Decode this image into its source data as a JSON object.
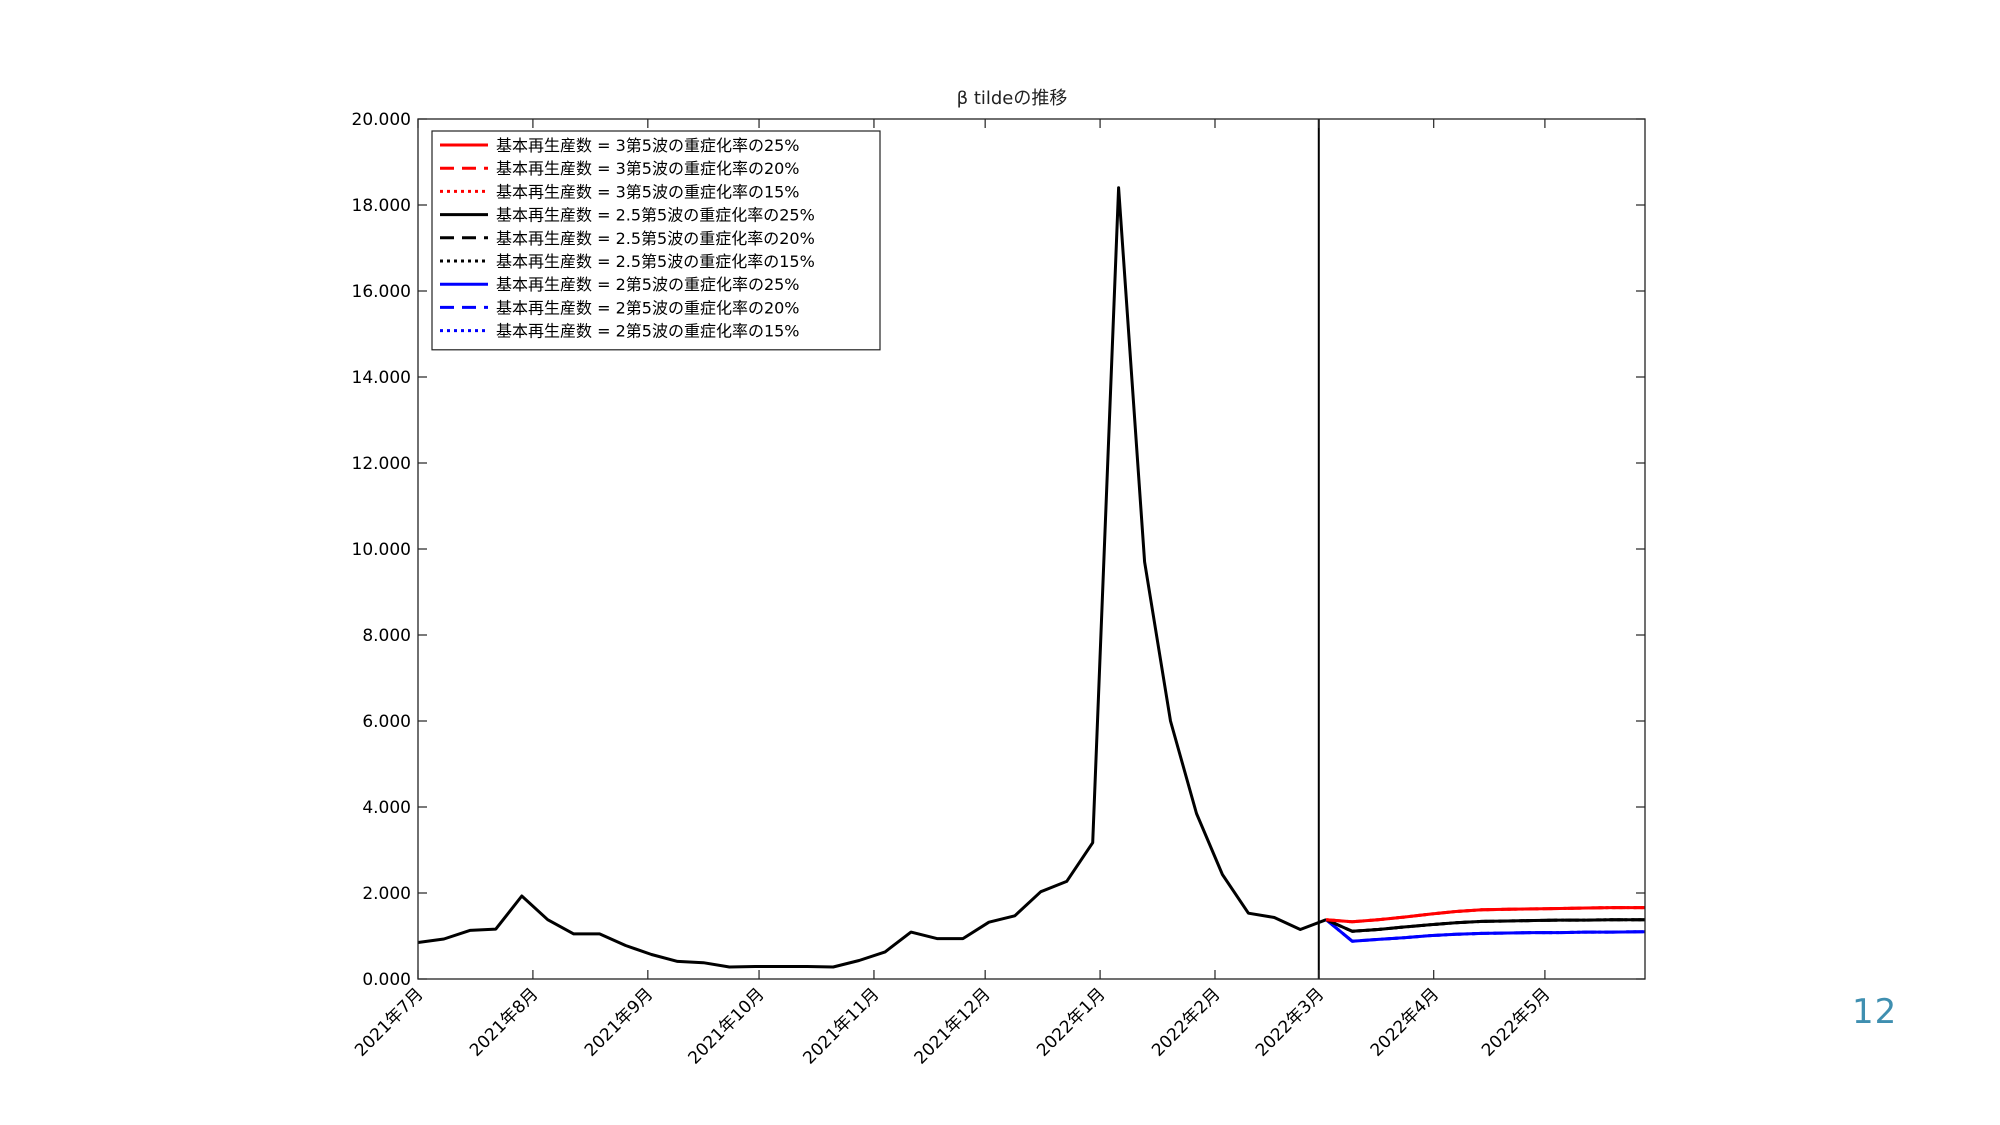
{
  "page": {
    "number": "12"
  },
  "chart_data": {
    "type": "line",
    "title": "β tildeの推移",
    "xlabel": "",
    "ylabel": "",
    "ylim": [
      0,
      20
    ],
    "x_range": [
      "2021-07-01",
      "2022-05-28"
    ],
    "x_ticks": [
      {
        "date": "2021-07-01",
        "label": "2021年7月"
      },
      {
        "date": "2021-08-01",
        "label": "2021年8月"
      },
      {
        "date": "2021-09-01",
        "label": "2021年9月"
      },
      {
        "date": "2021-10-01",
        "label": "2021年10月"
      },
      {
        "date": "2021-11-01",
        "label": "2021年11月"
      },
      {
        "date": "2021-12-01",
        "label": "2021年12月"
      },
      {
        "date": "2022-01-01",
        "label": "2022年1月"
      },
      {
        "date": "2022-02-01",
        "label": "2022年2月"
      },
      {
        "date": "2022-03-01",
        "label": "2022年3月"
      },
      {
        "date": "2022-04-01",
        "label": "2022年4月"
      },
      {
        "date": "2022-05-01",
        "label": "2022年5月"
      }
    ],
    "y_ticks": [
      {
        "value": 0,
        "label": "0.000"
      },
      {
        "value": 2,
        "label": "2.000"
      },
      {
        "value": 4,
        "label": "4.000"
      },
      {
        "value": 6,
        "label": "6.000"
      },
      {
        "value": 8,
        "label": "8.000"
      },
      {
        "value": 10,
        "label": "10.000"
      },
      {
        "value": 12,
        "label": "12.000"
      },
      {
        "value": 14,
        "label": "14.000"
      },
      {
        "value": 16,
        "label": "16.000"
      },
      {
        "value": 18,
        "label": "18.000"
      },
      {
        "value": 20,
        "label": "20.000"
      }
    ],
    "vertical_line": "2022-03-01",
    "grid": false,
    "legend_position": "top-left",
    "history": {
      "color": "#000000",
      "points": [
        [
          "2021-07-01",
          0.85
        ],
        [
          "2021-07-08",
          0.93
        ],
        [
          "2021-07-15",
          1.13
        ],
        [
          "2021-07-22",
          1.16
        ],
        [
          "2021-07-29",
          1.93
        ],
        [
          "2021-08-05",
          1.38
        ],
        [
          "2021-08-12",
          1.05
        ],
        [
          "2021-08-19",
          1.05
        ],
        [
          "2021-08-26",
          0.78
        ],
        [
          "2021-09-02",
          0.57
        ],
        [
          "2021-09-09",
          0.41
        ],
        [
          "2021-09-16",
          0.38
        ],
        [
          "2021-09-23",
          0.28
        ],
        [
          "2021-09-30",
          0.29
        ],
        [
          "2021-10-07",
          0.29
        ],
        [
          "2021-10-14",
          0.29
        ],
        [
          "2021-10-21",
          0.28
        ],
        [
          "2021-10-28",
          0.43
        ],
        [
          "2021-11-04",
          0.63
        ],
        [
          "2021-11-11",
          1.09
        ],
        [
          "2021-11-18",
          0.94
        ],
        [
          "2021-11-25",
          0.94
        ],
        [
          "2021-12-02",
          1.32
        ],
        [
          "2021-12-09",
          1.47
        ],
        [
          "2021-12-16",
          2.03
        ],
        [
          "2021-12-23",
          2.27
        ],
        [
          "2021-12-30",
          3.17
        ],
        [
          "2022-01-06",
          18.4
        ],
        [
          "2022-01-13",
          9.7
        ],
        [
          "2022-01-20",
          6.0
        ],
        [
          "2022-01-27",
          3.85
        ],
        [
          "2022-02-03",
          2.43
        ],
        [
          "2022-02-10",
          1.53
        ],
        [
          "2022-02-17",
          1.43
        ],
        [
          "2022-02-24",
          1.15
        ],
        [
          "2022-03-03",
          1.38
        ]
      ]
    },
    "series": [
      {
        "name": "基本再生産数 = 3第5波の重症化率の25%",
        "color": "#ff0000",
        "dash": "solid",
        "points": [
          [
            "2022-03-03",
            1.38
          ],
          [
            "2022-03-10",
            1.33
          ],
          [
            "2022-03-17",
            1.38
          ],
          [
            "2022-03-24",
            1.44
          ],
          [
            "2022-03-31",
            1.51
          ],
          [
            "2022-04-07",
            1.57
          ],
          [
            "2022-04-14",
            1.61
          ],
          [
            "2022-04-21",
            1.62
          ],
          [
            "2022-04-28",
            1.63
          ],
          [
            "2022-05-05",
            1.64
          ],
          [
            "2022-05-12",
            1.65
          ],
          [
            "2022-05-19",
            1.66
          ],
          [
            "2022-05-28",
            1.66
          ]
        ]
      },
      {
        "name": "基本再生産数 = 3第5波の重症化率の20%",
        "color": "#ff0000",
        "dash": "dashed",
        "points": [
          [
            "2022-03-03",
            1.38
          ],
          [
            "2022-03-10",
            1.33
          ],
          [
            "2022-03-17",
            1.38
          ],
          [
            "2022-03-24",
            1.44
          ],
          [
            "2022-03-31",
            1.51
          ],
          [
            "2022-04-07",
            1.57
          ],
          [
            "2022-04-14",
            1.61
          ],
          [
            "2022-04-21",
            1.62
          ],
          [
            "2022-04-28",
            1.63
          ],
          [
            "2022-05-05",
            1.64
          ],
          [
            "2022-05-12",
            1.65
          ],
          [
            "2022-05-19",
            1.66
          ],
          [
            "2022-05-28",
            1.66
          ]
        ]
      },
      {
        "name": "基本再生産数 = 3第5波の重症化率の15%",
        "color": "#ff0000",
        "dash": "dotted",
        "points": [
          [
            "2022-03-03",
            1.38
          ],
          [
            "2022-03-10",
            1.33
          ],
          [
            "2022-03-17",
            1.38
          ],
          [
            "2022-03-24",
            1.44
          ],
          [
            "2022-03-31",
            1.51
          ],
          [
            "2022-04-07",
            1.57
          ],
          [
            "2022-04-14",
            1.61
          ],
          [
            "2022-04-21",
            1.62
          ],
          [
            "2022-04-28",
            1.63
          ],
          [
            "2022-05-05",
            1.64
          ],
          [
            "2022-05-12",
            1.65
          ],
          [
            "2022-05-19",
            1.66
          ],
          [
            "2022-05-28",
            1.66
          ]
        ]
      },
      {
        "name": "基本再生産数 = 2.5第5波の重症化率の25%",
        "color": "#000000",
        "dash": "solid",
        "points": [
          [
            "2022-03-03",
            1.38
          ],
          [
            "2022-03-10",
            1.11
          ],
          [
            "2022-03-17",
            1.15
          ],
          [
            "2022-03-24",
            1.21
          ],
          [
            "2022-03-31",
            1.26
          ],
          [
            "2022-04-07",
            1.31
          ],
          [
            "2022-04-14",
            1.34
          ],
          [
            "2022-04-21",
            1.35
          ],
          [
            "2022-04-28",
            1.36
          ],
          [
            "2022-05-05",
            1.37
          ],
          [
            "2022-05-12",
            1.37
          ],
          [
            "2022-05-19",
            1.38
          ],
          [
            "2022-05-28",
            1.38
          ]
        ]
      },
      {
        "name": "基本再生産数 = 2.5第5波の重症化率の20%",
        "color": "#000000",
        "dash": "dashed",
        "points": [
          [
            "2022-03-03",
            1.38
          ],
          [
            "2022-03-10",
            1.11
          ],
          [
            "2022-03-17",
            1.15
          ],
          [
            "2022-03-24",
            1.21
          ],
          [
            "2022-03-31",
            1.26
          ],
          [
            "2022-04-07",
            1.31
          ],
          [
            "2022-04-14",
            1.34
          ],
          [
            "2022-04-21",
            1.35
          ],
          [
            "2022-04-28",
            1.36
          ],
          [
            "2022-05-05",
            1.37
          ],
          [
            "2022-05-12",
            1.37
          ],
          [
            "2022-05-19",
            1.38
          ],
          [
            "2022-05-28",
            1.38
          ]
        ]
      },
      {
        "name": "基本再生産数 = 2.5第5波の重症化率の15%",
        "color": "#000000",
        "dash": "dotted",
        "points": [
          [
            "2022-03-03",
            1.38
          ],
          [
            "2022-03-10",
            1.11
          ],
          [
            "2022-03-17",
            1.15
          ],
          [
            "2022-03-24",
            1.21
          ],
          [
            "2022-03-31",
            1.26
          ],
          [
            "2022-04-07",
            1.31
          ],
          [
            "2022-04-14",
            1.34
          ],
          [
            "2022-04-21",
            1.35
          ],
          [
            "2022-04-28",
            1.36
          ],
          [
            "2022-05-05",
            1.37
          ],
          [
            "2022-05-12",
            1.37
          ],
          [
            "2022-05-19",
            1.38
          ],
          [
            "2022-05-28",
            1.38
          ]
        ]
      },
      {
        "name": "基本再生産数 = 2第5波の重症化率の25%",
        "color": "#0000ff",
        "dash": "solid",
        "points": [
          [
            "2022-03-03",
            1.38
          ],
          [
            "2022-03-10",
            0.88
          ],
          [
            "2022-03-17",
            0.92
          ],
          [
            "2022-03-24",
            0.96
          ],
          [
            "2022-03-31",
            1.01
          ],
          [
            "2022-04-07",
            1.04
          ],
          [
            "2022-04-14",
            1.06
          ],
          [
            "2022-04-21",
            1.07
          ],
          [
            "2022-04-28",
            1.08
          ],
          [
            "2022-05-05",
            1.08
          ],
          [
            "2022-05-12",
            1.09
          ],
          [
            "2022-05-19",
            1.09
          ],
          [
            "2022-05-28",
            1.1
          ]
        ]
      },
      {
        "name": "基本再生産数 = 2第5波の重症化率の20%",
        "color": "#0000ff",
        "dash": "dashed",
        "points": [
          [
            "2022-03-03",
            1.38
          ],
          [
            "2022-03-10",
            0.88
          ],
          [
            "2022-03-17",
            0.92
          ],
          [
            "2022-03-24",
            0.96
          ],
          [
            "2022-03-31",
            1.01
          ],
          [
            "2022-04-07",
            1.04
          ],
          [
            "2022-04-14",
            1.06
          ],
          [
            "2022-04-21",
            1.07
          ],
          [
            "2022-04-28",
            1.08
          ],
          [
            "2022-05-05",
            1.08
          ],
          [
            "2022-05-12",
            1.09
          ],
          [
            "2022-05-19",
            1.09
          ],
          [
            "2022-05-28",
            1.1
          ]
        ]
      },
      {
        "name": "基本再生産数 = 2第5波の重症化率の15%",
        "color": "#0000ff",
        "dash": "dotted",
        "points": [
          [
            "2022-03-03",
            1.38
          ],
          [
            "2022-03-10",
            0.88
          ],
          [
            "2022-03-17",
            0.92
          ],
          [
            "2022-03-24",
            0.96
          ],
          [
            "2022-03-31",
            1.01
          ],
          [
            "2022-04-07",
            1.04
          ],
          [
            "2022-04-14",
            1.06
          ],
          [
            "2022-04-21",
            1.07
          ],
          [
            "2022-04-28",
            1.08
          ],
          [
            "2022-05-05",
            1.08
          ],
          [
            "2022-05-12",
            1.09
          ],
          [
            "2022-05-19",
            1.09
          ],
          [
            "2022-05-28",
            1.1
          ]
        ]
      }
    ]
  }
}
